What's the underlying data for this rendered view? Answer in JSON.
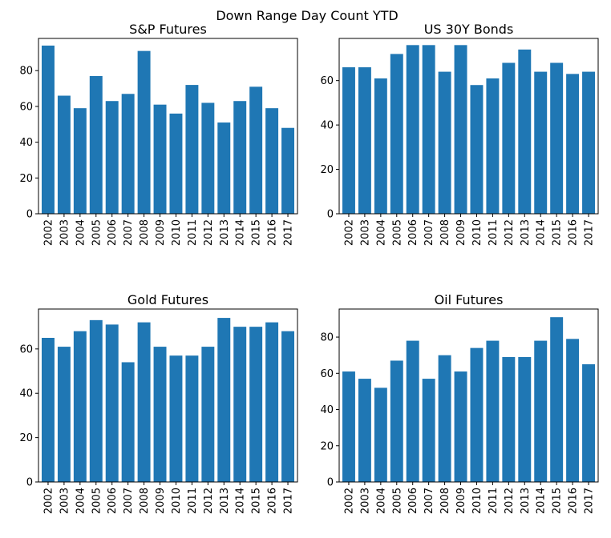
{
  "figure": {
    "title": "Down Range Day Count YTD",
    "bar_color": "#1f77b4"
  },
  "chart_data": [
    {
      "type": "bar",
      "title": "S&P Futures",
      "xlabel": "",
      "ylabel": "",
      "categories": [
        "2002",
        "2003",
        "2004",
        "2005",
        "2006",
        "2007",
        "2008",
        "2009",
        "2010",
        "2011",
        "2012",
        "2013",
        "2014",
        "2015",
        "2016",
        "2017"
      ],
      "values": [
        94,
        66,
        59,
        77,
        63,
        67,
        91,
        61,
        56,
        72,
        62,
        51,
        63,
        71,
        59,
        48
      ],
      "ylim": [
        0,
        98
      ],
      "yticks": [
        0,
        20,
        40,
        60,
        80
      ],
      "grid": false,
      "legend": "none"
    },
    {
      "type": "bar",
      "title": "US 30Y Bonds",
      "xlabel": "",
      "ylabel": "",
      "categories": [
        "2002",
        "2003",
        "2004",
        "2005",
        "2006",
        "2007",
        "2008",
        "2009",
        "2010",
        "2011",
        "2012",
        "2013",
        "2014",
        "2015",
        "2016",
        "2017"
      ],
      "values": [
        66,
        66,
        61,
        72,
        76,
        76,
        64,
        76,
        58,
        61,
        68,
        74,
        64,
        68,
        63,
        64
      ],
      "ylim": [
        0,
        79
      ],
      "yticks": [
        0,
        20,
        40,
        60
      ],
      "grid": false,
      "legend": "none"
    },
    {
      "type": "bar",
      "title": "Gold Futures",
      "xlabel": "",
      "ylabel": "",
      "categories": [
        "2002",
        "2003",
        "2004",
        "2005",
        "2006",
        "2007",
        "2008",
        "2009",
        "2010",
        "2011",
        "2012",
        "2013",
        "2014",
        "2015",
        "2016",
        "2017"
      ],
      "values": [
        65,
        61,
        68,
        73,
        71,
        54,
        72,
        61,
        57,
        57,
        61,
        74,
        70,
        70,
        72,
        68
      ],
      "ylim": [
        0,
        78
      ],
      "yticks": [
        0,
        20,
        40,
        60
      ],
      "grid": false,
      "legend": "none"
    },
    {
      "type": "bar",
      "title": "Oil Futures",
      "xlabel": "",
      "ylabel": "",
      "categories": [
        "2002",
        "2003",
        "2004",
        "2005",
        "2006",
        "2007",
        "2008",
        "2009",
        "2010",
        "2011",
        "2012",
        "2013",
        "2014",
        "2015",
        "2016",
        "2017"
      ],
      "values": [
        61,
        57,
        52,
        67,
        78,
        57,
        70,
        61,
        74,
        78,
        69,
        69,
        78,
        91,
        79,
        65
      ],
      "ylim": [
        0,
        95.5
      ],
      "yticks": [
        0,
        20,
        40,
        60,
        80
      ],
      "grid": false,
      "legend": "none"
    }
  ]
}
